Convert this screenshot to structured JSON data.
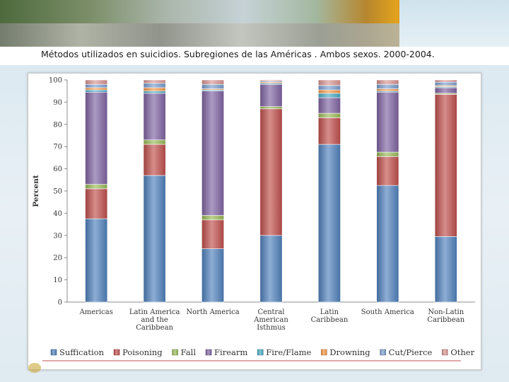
{
  "page": {
    "title": "Métodos utilizados en suicidios. Subregiones de las Américas . Ambos sexos. 2000-2004."
  },
  "chart_data": {
    "type": "bar",
    "stacked": true,
    "title": "Métodos utilizados en suicidios. Subregiones de las Américas . Ambos sexos. 2000-2004.",
    "xlabel": "",
    "ylabel": "Percent",
    "ylim": [
      0,
      100
    ],
    "yticks": [
      0,
      10,
      20,
      30,
      40,
      50,
      60,
      70,
      80,
      90,
      100
    ],
    "legend_position": "bottom",
    "categories": [
      [
        "Americas"
      ],
      [
        "Latin America",
        "and the",
        "Caribbean"
      ],
      [
        "North America"
      ],
      [
        "Central",
        "American",
        "Isthmus"
      ],
      [
        "Latin",
        "Caribbean"
      ],
      [
        "South America"
      ],
      [
        "Non-Latin",
        "Caribbean"
      ]
    ],
    "series": [
      {
        "name": "Suffication",
        "color": "#4f81bd",
        "values": [
          37.5,
          57,
          24,
          30,
          71,
          52.5,
          29.5
        ]
      },
      {
        "name": "Poisoning",
        "color": "#c0504d",
        "values": [
          13.5,
          14,
          13,
          57,
          12,
          13,
          64
        ]
      },
      {
        "name": "Fall",
        "color": "#9bbb59",
        "values": [
          2,
          2,
          2,
          1,
          2,
          2,
          0.5
        ]
      },
      {
        "name": "Firearm",
        "color": "#8064a2",
        "values": [
          41.5,
          21,
          56,
          10,
          7,
          27,
          2.5
        ]
      },
      {
        "name": "Fire/Flame",
        "color": "#4bacc6",
        "values": [
          1,
          1,
          0.5,
          0.5,
          2,
          0.5,
          0.5
        ]
      },
      {
        "name": "Drowning",
        "color": "#f79646",
        "values": [
          1,
          1.5,
          0.5,
          0.5,
          1.5,
          1,
          0.5
        ]
      },
      {
        "name": "Cut/Pierce",
        "color": "#7b9fd0",
        "values": [
          1.5,
          2,
          2,
          0.5,
          2,
          2,
          1.5
        ]
      },
      {
        "name": "Other",
        "color": "#d99694",
        "values": [
          2,
          1.5,
          2,
          0.5,
          2.5,
          2,
          1
        ]
      }
    ]
  }
}
